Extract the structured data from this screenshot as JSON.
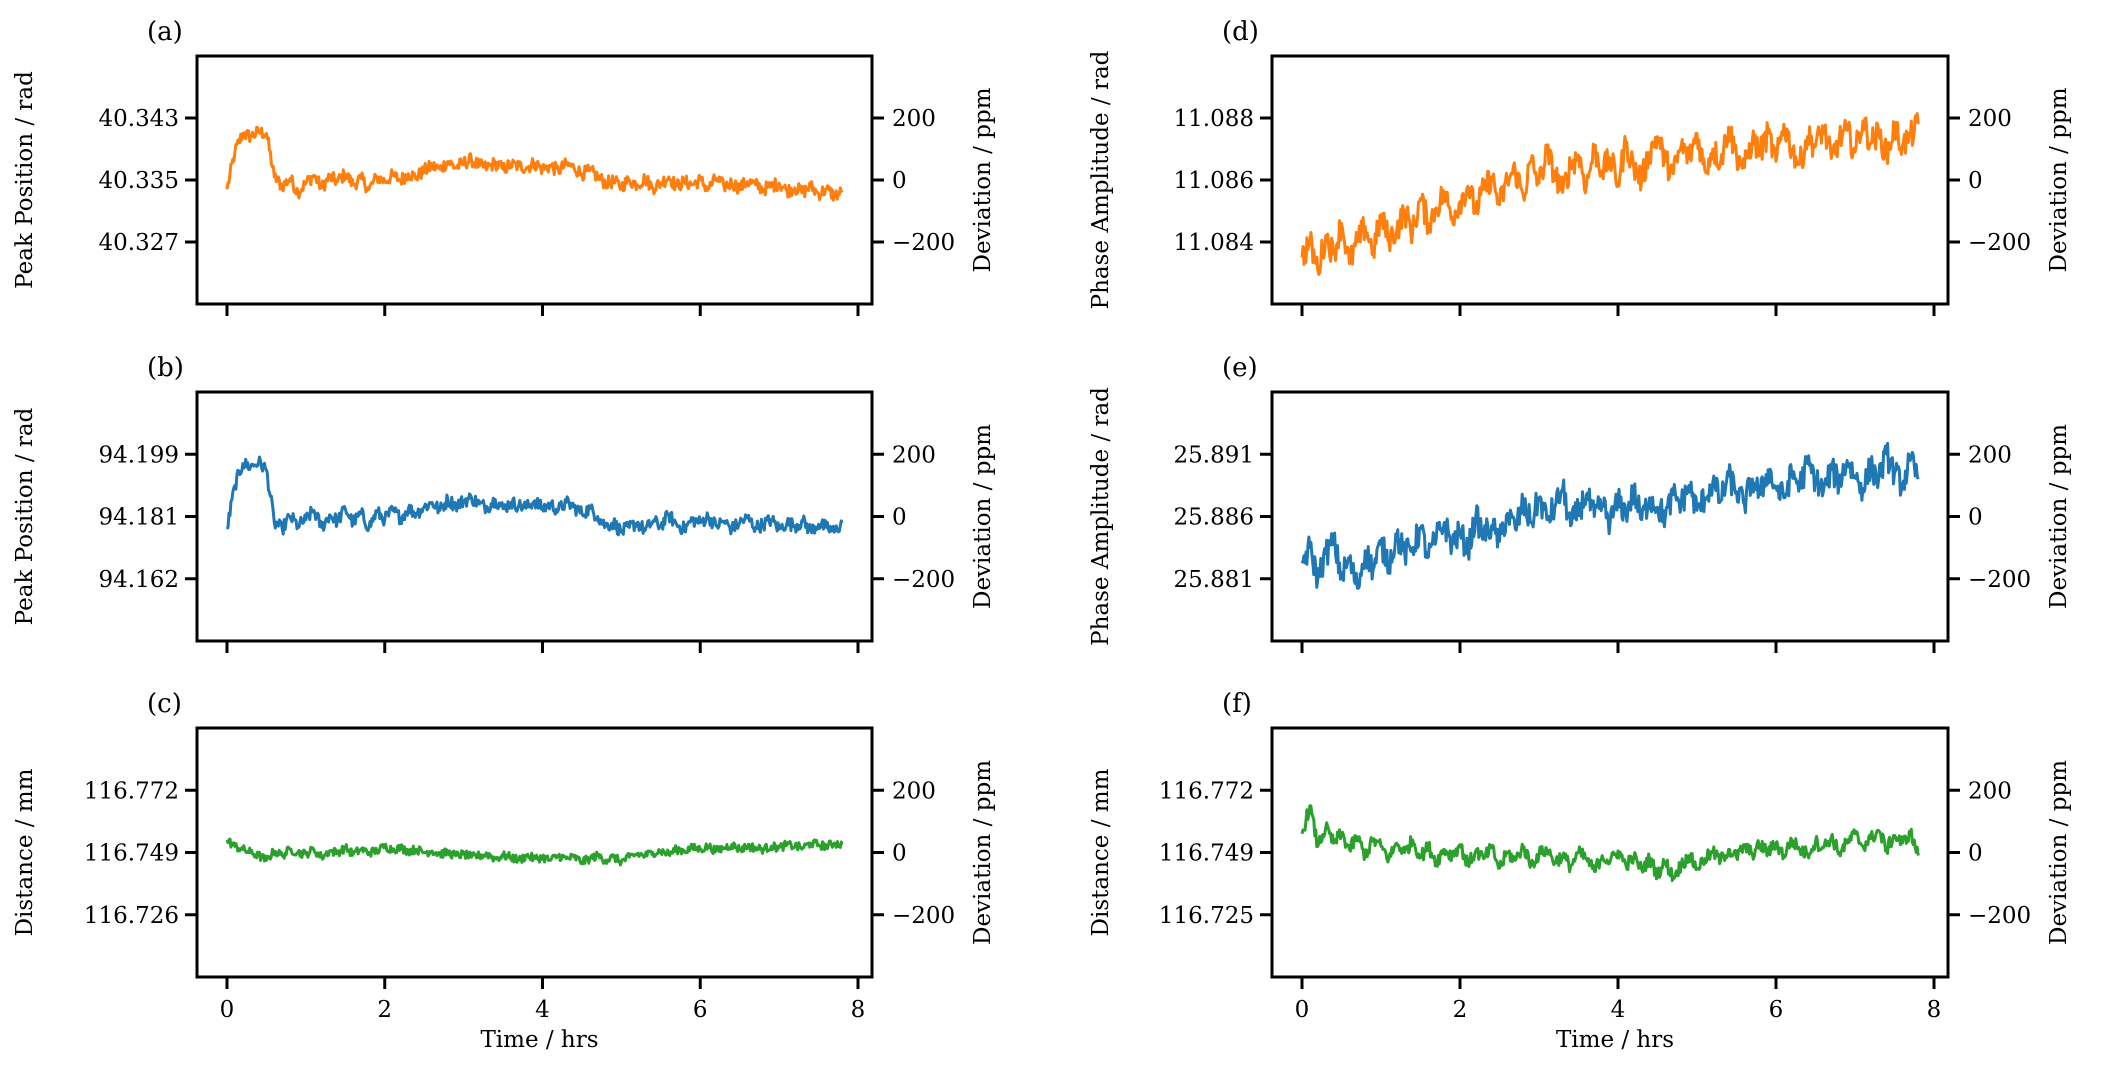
{
  "chart_data": [
    {
      "id": "a",
      "type": "line",
      "panel_label": "(a)",
      "ylabel": "Peak Position / rad",
      "ylabel_right": "Deviation / ppm",
      "xlabel": "",
      "color": "#ff7f0e",
      "xlim": [
        -0.35,
        8.2
      ],
      "xticks": [
        0,
        2,
        4,
        6,
        8
      ],
      "xtick_labels": [],
      "yticks_left": [
        "40.343",
        "40.335",
        "40.327"
      ],
      "yticks_right": [
        200,
        0,
        -200
      ],
      "yticks_right_labels": [
        "200",
        "0",
        "−200"
      ],
      "ylim_right": [
        -400,
        400
      ],
      "x": [
        0,
        0.1,
        0.2,
        0.3,
        0.4,
        0.5,
        0.6,
        0.7,
        0.8,
        0.9,
        1.0,
        1.1,
        1.2,
        1.3,
        1.4,
        1.5,
        1.6,
        1.7,
        1.8,
        1.9,
        2.0,
        2.1,
        2.2,
        2.3,
        2.4,
        2.5,
        2.6,
        2.7,
        2.8,
        2.9,
        3.0,
        3.1,
        3.2,
        3.3,
        3.4,
        3.5,
        3.6,
        3.7,
        3.8,
        3.9,
        4.0,
        4.1,
        4.2,
        4.3,
        4.4,
        4.5,
        4.6,
        4.7,
        4.8,
        4.9,
        5.0,
        5.1,
        5.2,
        5.3,
        5.4,
        5.5,
        5.6,
        5.7,
        5.8,
        5.9,
        6.0,
        6.1,
        6.2,
        6.3,
        6.4,
        6.5,
        6.6,
        6.7,
        6.8,
        6.9,
        7.0,
        7.1,
        7.2,
        7.3,
        7.4,
        7.5,
        7.6,
        7.7,
        7.8
      ],
      "y": [
        -30,
        90,
        150,
        140,
        155,
        150,
        10,
        -20,
        5,
        -40,
        -10,
        15,
        -25,
        10,
        -5,
        20,
        -15,
        5,
        -30,
        10,
        -5,
        15,
        0,
        20,
        10,
        30,
        45,
        35,
        60,
        40,
        55,
        65,
        45,
        40,
        55,
        35,
        50,
        45,
        40,
        55,
        35,
        45,
        30,
        50,
        40,
        20,
        30,
        10,
        -10,
        -5,
        -20,
        0,
        -15,
        5,
        -25,
        -10,
        10,
        -20,
        -5,
        -15,
        0,
        -30,
        5,
        -20,
        -10,
        -25,
        -5,
        -15,
        -30,
        -20,
        -10,
        -35,
        -25,
        -40,
        -20,
        -45,
        -30,
        -50,
        -40
      ]
    },
    {
      "id": "b",
      "type": "line",
      "panel_label": "(b)",
      "ylabel": "Peak Position / rad",
      "ylabel_right": "Deviation / ppm",
      "xlabel": "",
      "color": "#1f77b4",
      "xlim": [
        -0.35,
        8.2
      ],
      "xticks": [
        0,
        2,
        4,
        6,
        8
      ],
      "xtick_labels": [],
      "yticks_left": [
        "94.199",
        "94.181",
        "94.162"
      ],
      "yticks_right": [
        200,
        0,
        -200
      ],
      "yticks_right_labels": [
        "200",
        "0",
        "−200"
      ],
      "ylim_right": [
        -400,
        400
      ],
      "x": [
        0,
        0.1,
        0.2,
        0.3,
        0.4,
        0.5,
        0.6,
        0.7,
        0.8,
        0.9,
        1.0,
        1.1,
        1.2,
        1.3,
        1.4,
        1.5,
        1.6,
        1.7,
        1.8,
        1.9,
        2.0,
        2.1,
        2.2,
        2.3,
        2.4,
        2.5,
        2.6,
        2.7,
        2.8,
        2.9,
        3.0,
        3.1,
        3.2,
        3.3,
        3.4,
        3.5,
        3.6,
        3.7,
        3.8,
        3.9,
        4.0,
        4.1,
        4.2,
        4.3,
        4.4,
        4.5,
        4.6,
        4.7,
        4.8,
        4.9,
        5.0,
        5.1,
        5.2,
        5.3,
        5.4,
        5.5,
        5.6,
        5.7,
        5.8,
        5.9,
        6.0,
        6.1,
        6.2,
        6.3,
        6.4,
        6.5,
        6.6,
        6.7,
        6.8,
        6.9,
        7.0,
        7.1,
        7.2,
        7.3,
        7.4,
        7.5,
        7.6,
        7.7,
        7.8
      ],
      "y": [
        -40,
        100,
        170,
        160,
        175,
        150,
        -20,
        -40,
        0,
        -30,
        -10,
        20,
        -35,
        5,
        -15,
        25,
        -20,
        10,
        -35,
        15,
        -10,
        20,
        -5,
        25,
        10,
        30,
        45,
        20,
        55,
        35,
        50,
        60,
        40,
        30,
        55,
        25,
        45,
        35,
        30,
        50,
        25,
        40,
        20,
        45,
        30,
        10,
        25,
        0,
        -30,
        -20,
        -50,
        -35,
        -20,
        -45,
        -15,
        -30,
        5,
        -25,
        -40,
        -10,
        -20,
        0,
        -30,
        -15,
        -40,
        -20,
        -5,
        -35,
        -25,
        -10,
        -40,
        -20,
        -30,
        -15,
        -45,
        -25,
        -35,
        -50,
        -20
      ]
    },
    {
      "id": "c",
      "type": "line",
      "panel_label": "(c)",
      "ylabel": "Distance / mm",
      "ylabel_right": "Deviation / ppm",
      "xlabel": "Time / hrs",
      "color": "#2ca02c",
      "xlim": [
        -0.35,
        8.2
      ],
      "xticks": [
        0,
        2,
        4,
        6,
        8
      ],
      "xtick_labels": [
        "0",
        "2",
        "4",
        "6",
        "8"
      ],
      "yticks_left": [
        "116.772",
        "116.749",
        "116.726"
      ],
      "yticks_right": [
        200,
        0,
        -200
      ],
      "yticks_right_labels": [
        "200",
        "0",
        "−200"
      ],
      "ylim_right": [
        -400,
        400
      ],
      "x": [
        0,
        0.1,
        0.2,
        0.3,
        0.4,
        0.5,
        0.6,
        0.7,
        0.8,
        0.9,
        1.0,
        1.1,
        1.2,
        1.3,
        1.4,
        1.5,
        1.6,
        1.7,
        1.8,
        1.9,
        2.0,
        2.1,
        2.2,
        2.3,
        2.4,
        2.5,
        2.6,
        2.7,
        2.8,
        2.9,
        3.0,
        3.1,
        3.2,
        3.3,
        3.4,
        3.5,
        3.6,
        3.7,
        3.8,
        3.9,
        4.0,
        4.1,
        4.2,
        4.3,
        4.4,
        4.5,
        4.6,
        4.7,
        4.8,
        4.9,
        5.0,
        5.1,
        5.2,
        5.3,
        5.4,
        5.5,
        5.6,
        5.7,
        5.8,
        5.9,
        6.0,
        6.1,
        6.2,
        6.3,
        6.4,
        6.5,
        6.6,
        6.7,
        6.8,
        6.9,
        7.0,
        7.1,
        7.2,
        7.3,
        7.4,
        7.5,
        7.6,
        7.7,
        7.8
      ],
      "y": [
        40,
        20,
        10,
        0,
        -10,
        -25,
        5,
        -10,
        10,
        0,
        -5,
        10,
        -15,
        5,
        0,
        15,
        -5,
        10,
        0,
        5,
        20,
        10,
        15,
        5,
        10,
        0,
        5,
        -5,
        0,
        -10,
        -5,
        -15,
        -10,
        -5,
        -20,
        -10,
        -15,
        -25,
        -10,
        -20,
        -15,
        -25,
        -10,
        -20,
        -15,
        -30,
        -20,
        -10,
        -25,
        -15,
        -30,
        -15,
        -5,
        -10,
        0,
        5,
        -5,
        10,
        5,
        15,
        10,
        20,
        5,
        15,
        25,
        10,
        20,
        15,
        10,
        20,
        15,
        25,
        20,
        15,
        30,
        25,
        20,
        30,
        25
      ]
    },
    {
      "id": "d",
      "type": "line",
      "panel_label": "(d)",
      "ylabel": "Phase Amplitude / rad",
      "ylabel_right": "Deviation / ppm",
      "xlabel": "",
      "color": "#ff7f0e",
      "xlim": [
        -0.35,
        8.2
      ],
      "xticks": [
        0,
        2,
        4,
        6,
        8
      ],
      "xtick_labels": [],
      "yticks_left": [
        "11.088",
        "11.086",
        "11.084"
      ],
      "yticks_right": [
        200,
        0,
        -200
      ],
      "yticks_right_labels": [
        "200",
        "0",
        "−200"
      ],
      "ylim_right": [
        -400,
        400
      ],
      "x": [
        0,
        0.1,
        0.2,
        0.3,
        0.4,
        0.5,
        0.6,
        0.7,
        0.8,
        0.9,
        1.0,
        1.1,
        1.2,
        1.3,
        1.4,
        1.5,
        1.6,
        1.7,
        1.8,
        1.9,
        2.0,
        2.1,
        2.2,
        2.3,
        2.4,
        2.5,
        2.6,
        2.7,
        2.8,
        2.9,
        3.0,
        3.1,
        3.2,
        3.3,
        3.4,
        3.5,
        3.6,
        3.7,
        3.8,
        3.9,
        4.0,
        4.1,
        4.2,
        4.3,
        4.4,
        4.5,
        4.6,
        4.7,
        4.8,
        4.9,
        5.0,
        5.1,
        5.2,
        5.3,
        5.4,
        5.5,
        5.6,
        5.7,
        5.8,
        5.9,
        6.0,
        6.1,
        6.2,
        6.3,
        6.4,
        6.5,
        6.6,
        6.7,
        6.8,
        6.9,
        7.0,
        7.1,
        7.2,
        7.3,
        7.4,
        7.5,
        7.6,
        7.7,
        7.8
      ],
      "y": [
        -250,
        -200,
        -290,
        -180,
        -240,
        -140,
        -270,
        -200,
        -150,
        -230,
        -120,
        -190,
        -160,
        -100,
        -170,
        -60,
        -140,
        -90,
        -40,
        -120,
        -70,
        -20,
        -100,
        -30,
        10,
        -80,
        0,
        30,
        -50,
        60,
        -10,
        90,
        20,
        -40,
        50,
        80,
        -20,
        100,
        30,
        70,
        -10,
        120,
        40,
        0,
        90,
        140,
        60,
        20,
        110,
        70,
        150,
        30,
        100,
        60,
        170,
        80,
        40,
        130,
        90,
        150,
        60,
        180,
        100,
        50,
        140,
        110,
        170,
        70,
        130,
        160,
        90,
        190,
        120,
        150,
        80,
        170,
        110,
        140,
        180
      ]
    },
    {
      "id": "e",
      "type": "line",
      "panel_label": "(e)",
      "ylabel": "Phase Amplitude / rad",
      "ylabel_right": "Deviation / ppm",
      "xlabel": "",
      "color": "#1f77b4",
      "xlim": [
        -0.35,
        8.2
      ],
      "xticks": [
        0,
        2,
        4,
        6,
        8
      ],
      "xtick_labels": [],
      "yticks_left": [
        "25.891",
        "25.886",
        "25.881"
      ],
      "yticks_right": [
        200,
        0,
        -200
      ],
      "yticks_right_labels": [
        "200",
        "0",
        "−200"
      ],
      "ylim_right": [
        -400,
        400
      ],
      "x": [
        0,
        0.1,
        0.2,
        0.3,
        0.4,
        0.5,
        0.6,
        0.7,
        0.8,
        0.9,
        1.0,
        1.1,
        1.2,
        1.3,
        1.4,
        1.5,
        1.6,
        1.7,
        1.8,
        1.9,
        2.0,
        2.1,
        2.2,
        2.3,
        2.4,
        2.5,
        2.6,
        2.7,
        2.8,
        2.9,
        3.0,
        3.1,
        3.2,
        3.3,
        3.4,
        3.5,
        3.6,
        3.7,
        3.8,
        3.9,
        4.0,
        4.1,
        4.2,
        4.3,
        4.4,
        4.5,
        4.6,
        4.7,
        4.8,
        4.9,
        5.0,
        5.1,
        5.2,
        5.3,
        5.4,
        5.5,
        5.6,
        5.7,
        5.8,
        5.9,
        6.0,
        6.1,
        6.2,
        6.3,
        6.4,
        6.5,
        6.6,
        6.7,
        6.8,
        6.9,
        7.0,
        7.1,
        7.2,
        7.3,
        7.4,
        7.5,
        7.6,
        7.7,
        7.8
      ],
      "y": [
        -150,
        -100,
        -200,
        -120,
        -80,
        -190,
        -140,
        -230,
        -110,
        -170,
        -90,
        -150,
        -60,
        -120,
        -100,
        -40,
        -130,
        -70,
        -20,
        -90,
        -50,
        -110,
        0,
        -60,
        -30,
        -80,
        10,
        -40,
        40,
        -20,
        60,
        -10,
        30,
        90,
        -30,
        20,
        70,
        0,
        40,
        -20,
        50,
        10,
        80,
        -10,
        60,
        30,
        0,
        70,
        40,
        100,
        20,
        60,
        110,
        50,
        130,
        80,
        40,
        120,
        70,
        150,
        90,
        60,
        140,
        100,
        170,
        120,
        80,
        150,
        110,
        180,
        130,
        90,
        160,
        120,
        200,
        140,
        100,
        180,
        120
      ]
    },
    {
      "id": "f",
      "type": "line",
      "panel_label": "(f)",
      "ylabel": "Distance / mm",
      "ylabel_right": "Deviation / ppm",
      "xlabel": "Time / hrs",
      "color": "#2ca02c",
      "xlim": [
        -0.35,
        8.2
      ],
      "xticks": [
        0,
        2,
        4,
        6,
        8
      ],
      "xtick_labels": [
        "0",
        "2",
        "4",
        "6",
        "8"
      ],
      "yticks_left": [
        "116.772",
        "116.749",
        "116.725"
      ],
      "yticks_right": [
        200,
        0,
        -200
      ],
      "yticks_right_labels": [
        "200",
        "0",
        "−200"
      ],
      "ylim_right": [
        -400,
        400
      ],
      "x": [
        0,
        0.1,
        0.2,
        0.3,
        0.4,
        0.5,
        0.6,
        0.7,
        0.8,
        0.9,
        1.0,
        1.1,
        1.2,
        1.3,
        1.4,
        1.5,
        1.6,
        1.7,
        1.8,
        1.9,
        2.0,
        2.1,
        2.2,
        2.3,
        2.4,
        2.5,
        2.6,
        2.7,
        2.8,
        2.9,
        3.0,
        3.1,
        3.2,
        3.3,
        3.4,
        3.5,
        3.6,
        3.7,
        3.8,
        3.9,
        4.0,
        4.1,
        4.2,
        4.3,
        4.4,
        4.5,
        4.6,
        4.7,
        4.8,
        4.9,
        5.0,
        5.1,
        5.2,
        5.3,
        5.4,
        5.5,
        5.6,
        5.7,
        5.8,
        5.9,
        6.0,
        6.1,
        6.2,
        6.3,
        6.4,
        6.5,
        6.6,
        6.7,
        6.8,
        6.9,
        7.0,
        7.1,
        7.2,
        7.3,
        7.4,
        7.5,
        7.6,
        7.7,
        7.8
      ],
      "y": [
        60,
        150,
        20,
        80,
        30,
        60,
        10,
        50,
        -10,
        40,
        20,
        -20,
        30,
        0,
        40,
        -15,
        20,
        -30,
        10,
        -10,
        25,
        -40,
        5,
        -20,
        15,
        -50,
        0,
        -25,
        20,
        -40,
        -5,
        10,
        -30,
        -10,
        -45,
        0,
        -20,
        -60,
        -10,
        -30,
        5,
        -40,
        -15,
        -55,
        -20,
        -70,
        -30,
        -80,
        -40,
        -10,
        -50,
        -20,
        0,
        -25,
        10,
        -15,
        20,
        -5,
        25,
        0,
        30,
        -10,
        40,
        10,
        -5,
        35,
        15,
        50,
        0,
        30,
        60,
        20,
        45,
        70,
        10,
        55,
        30,
        65,
        -10
      ]
    }
  ]
}
